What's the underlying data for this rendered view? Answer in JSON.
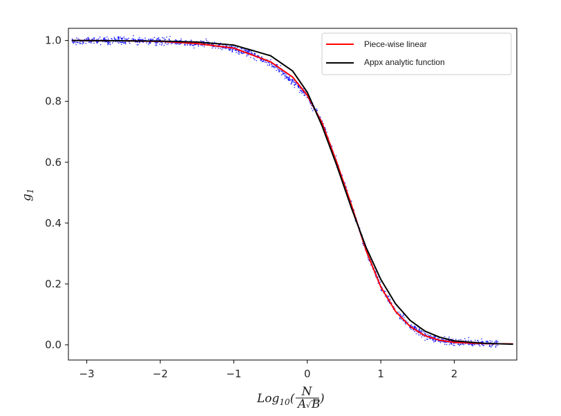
{
  "chart_data": {
    "type": "line",
    "xlabel": "Log10(N / (A √B))",
    "xlabel_parts": {
      "base": "Log",
      "sub": "10",
      "open": "(",
      "num": "N",
      "den_a": "A",
      "den_b": "B",
      "close": ")"
    },
    "ylabel": "g1",
    "ylabel_parts": {
      "base": "g",
      "sub": "1"
    },
    "xlim": [
      -3.25,
      2.85
    ],
    "ylim": [
      -0.05,
      1.04
    ],
    "xticks": [
      -3,
      -2,
      -1,
      0,
      1,
      2
    ],
    "xtick_labels": [
      "−3",
      "−2",
      "−1",
      "0",
      "1",
      "2"
    ],
    "yticks": [
      0.0,
      0.2,
      0.4,
      0.6,
      0.8,
      1.0
    ],
    "ytick_labels": [
      "0.0",
      "0.2",
      "0.4",
      "0.6",
      "0.8",
      "1.0"
    ],
    "legend_position": "top-right",
    "grid": false,
    "series": [
      {
        "name": "Piece-wise linear",
        "color": "#ff0000",
        "kind": "line",
        "x": [
          -3.2,
          -2.5,
          -2.0,
          -1.5,
          -1.0,
          -0.5,
          -0.2,
          0.0,
          0.2,
          0.4,
          0.6,
          0.8,
          1.0,
          1.2,
          1.4,
          1.6,
          1.8,
          2.0,
          2.4,
          2.8
        ],
        "y": [
          1.0,
          0.999,
          0.997,
          0.99,
          0.975,
          0.93,
          0.88,
          0.82,
          0.73,
          0.6,
          0.46,
          0.31,
          0.19,
          0.11,
          0.06,
          0.03,
          0.015,
          0.008,
          0.004,
          0.003
        ]
      },
      {
        "name": "Appx analytic function",
        "color": "#000000",
        "kind": "line",
        "x": [
          -3.2,
          -2.5,
          -2.0,
          -1.5,
          -1.0,
          -0.5,
          -0.2,
          0.0,
          0.2,
          0.4,
          0.6,
          0.8,
          1.0,
          1.2,
          1.4,
          1.6,
          1.8,
          2.0,
          2.4,
          2.8
        ],
        "y": [
          1.0,
          0.999,
          0.998,
          0.995,
          0.985,
          0.95,
          0.9,
          0.83,
          0.72,
          0.59,
          0.45,
          0.32,
          0.215,
          0.135,
          0.08,
          0.045,
          0.025,
          0.013,
          0.005,
          0.002
        ]
      },
      {
        "kind": "scatter",
        "color": "#0000ff",
        "note_values": "scattered noisy samples around the piece-wise linear curve",
        "x": [
          -3.2,
          -2.8,
          -2.4,
          -2.0,
          -1.6,
          -1.2,
          -0.8,
          -0.4,
          0.0,
          0.2,
          0.4,
          0.6,
          0.8,
          1.0,
          1.2,
          1.4,
          1.6,
          1.8,
          2.0,
          2.3,
          2.6
        ],
        "y": [
          1.0,
          1.0,
          1.0,
          0.998,
          0.992,
          0.983,
          0.96,
          0.91,
          0.82,
          0.73,
          0.6,
          0.46,
          0.31,
          0.19,
          0.11,
          0.06,
          0.03,
          0.015,
          0.008,
          0.005,
          0.003
        ]
      }
    ]
  }
}
